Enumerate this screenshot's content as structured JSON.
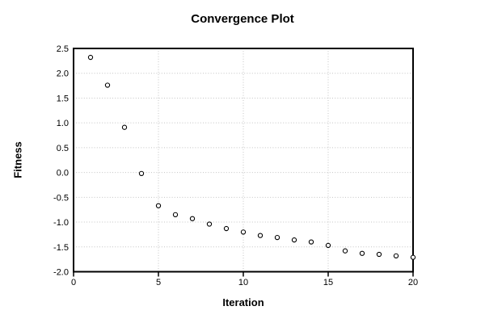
{
  "chart_data": {
    "type": "scatter",
    "title": "Convergence Plot",
    "xlabel": "Iteration",
    "ylabel": "Fitness",
    "x": [
      1,
      2,
      3,
      4,
      5,
      6,
      7,
      8,
      9,
      10,
      11,
      12,
      13,
      14,
      15,
      16,
      17,
      18,
      19,
      20
    ],
    "y": [
      2.32,
      1.76,
      0.91,
      -0.02,
      -0.67,
      -0.85,
      -0.93,
      -1.04,
      -1.13,
      -1.2,
      -1.27,
      -1.31,
      -1.36,
      -1.4,
      -1.47,
      -1.58,
      -1.63,
      -1.65,
      -1.68,
      -1.71
    ],
    "xlim": [
      0,
      20
    ],
    "ylim": [
      -2.0,
      2.5
    ],
    "xticks": [
      0,
      5,
      10,
      15,
      20
    ],
    "xtick_labels": [
      "0",
      "5",
      "10",
      "15",
      "20"
    ],
    "yticks": [
      2.5,
      2.0,
      1.5,
      1.0,
      0.5,
      0.0,
      -0.5,
      -1.0,
      -1.5,
      -2.0
    ],
    "ytick_labels": [
      "2.5",
      "2.0",
      "1.5",
      "1.0",
      "0.5",
      "0.0",
      "-0.5",
      "-1.0",
      "-1.5",
      "-2.0"
    ],
    "grid": true,
    "grid_x_at": [
      5,
      10,
      15
    ],
    "grid_y_at": [
      2.0,
      1.5,
      1.0,
      0.5,
      0.0,
      -0.5,
      -1.0,
      -1.5
    ],
    "legend": "none",
    "marker": "open-circle",
    "marker_color": "#000000",
    "marker_fill": "#ffffff",
    "grid_color": "#c4c4c4",
    "frame_color": "#000000",
    "background": "#ffffff"
  }
}
